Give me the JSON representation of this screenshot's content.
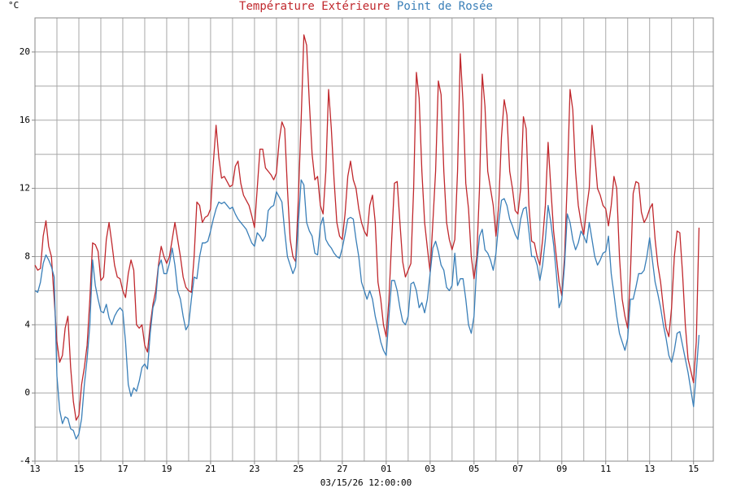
{
  "chart_data": {
    "type": "line",
    "y_unit": "°C",
    "x_label": "03/15/26 12:00:00",
    "x": [
      0,
      0.125,
      0.25,
      0.375,
      0.5,
      0.625,
      0.75,
      0.875,
      1,
      1.125,
      1.25,
      1.375,
      1.5,
      1.625,
      1.75,
      1.875,
      2,
      2.125,
      2.25,
      2.375,
      2.5,
      2.625,
      2.75,
      2.875,
      3,
      3.125,
      3.25,
      3.375,
      3.5,
      3.625,
      3.75,
      3.875,
      4,
      4.125,
      4.25,
      4.375,
      4.5,
      4.625,
      4.75,
      4.875,
      5,
      5.125,
      5.25,
      5.375,
      5.5,
      5.625,
      5.75,
      5.875,
      6,
      6.125,
      6.25,
      6.375,
      6.5,
      6.625,
      6.75,
      6.875,
      7,
      7.125,
      7.25,
      7.375,
      7.5,
      7.625,
      7.75,
      7.875,
      8,
      8.125,
      8.25,
      8.375,
      8.5,
      8.625,
      8.75,
      8.875,
      9,
      9.125,
      9.25,
      9.375,
      9.5,
      9.625,
      9.75,
      9.875,
      10,
      10.125,
      10.25,
      10.375,
      10.5,
      10.625,
      10.75,
      10.875,
      11,
      11.125,
      11.25,
      11.375,
      11.5,
      11.625,
      11.75,
      11.875,
      12,
      12.125,
      12.25,
      12.375,
      12.5,
      12.625,
      12.75,
      12.875,
      13,
      13.125,
      13.25,
      13.375,
      13.5,
      13.625,
      13.75,
      13.875,
      14,
      14.125,
      14.25,
      14.375,
      14.5,
      14.625,
      14.75,
      14.875,
      15,
      15.125,
      15.25,
      15.375,
      15.5,
      15.625,
      15.75,
      15.875,
      16,
      16.125,
      16.25,
      16.375,
      16.5,
      16.625,
      16.75,
      16.875,
      17,
      17.125,
      17.25,
      17.375,
      17.5,
      17.625,
      17.75,
      17.875,
      18,
      18.125,
      18.25,
      18.375,
      18.5,
      18.625,
      18.75,
      18.875,
      19,
      19.125,
      19.25,
      19.375,
      19.5,
      19.625,
      19.75,
      19.875,
      20,
      20.125,
      20.25,
      20.375,
      20.5,
      20.625,
      20.75,
      20.875,
      21,
      21.125,
      21.25,
      21.375,
      21.5,
      21.625,
      21.75,
      21.875,
      22,
      22.125,
      22.25,
      22.375,
      22.5,
      22.625,
      22.75,
      22.875,
      23,
      23.125,
      23.25,
      23.375,
      23.5,
      23.625,
      23.75,
      23.875,
      24,
      24.125,
      24.25,
      24.375,
      24.5,
      24.625,
      24.75,
      24.875,
      25,
      25.125,
      25.25,
      25.375,
      25.5,
      25.625,
      25.75,
      25.875,
      26,
      26.125,
      26.25,
      26.375,
      26.5,
      26.625,
      26.75,
      26.875,
      27,
      27.125,
      27.25,
      27.375,
      27.5,
      27.625,
      27.75,
      27.875,
      28,
      28.125,
      28.25,
      28.375,
      28.5,
      28.625,
      28.75,
      28.875,
      29,
      29.125,
      29.25,
      29.375,
      29.5,
      29.625,
      29.75,
      29.875,
      30,
      30.125,
      30.25
    ],
    "series": [
      {
        "name": "Température Extérieure",
        "color": "#c0282d",
        "values": [
          7.5,
          7.2,
          7.3,
          9.2,
          10.1,
          8.6,
          8.0,
          5.5,
          3.0,
          1.8,
          2.2,
          3.8,
          4.5,
          1.5,
          -0.5,
          -1.6,
          -1.3,
          0.5,
          1.5,
          2.8,
          5.5,
          8.8,
          8.7,
          8.3,
          6.6,
          6.8,
          9.0,
          10.0,
          8.8,
          7.5,
          6.8,
          6.7,
          6.0,
          5.6,
          7.0,
          7.8,
          7.2,
          4.0,
          3.8,
          4.0,
          2.8,
          2.4,
          4.0,
          5.2,
          6.0,
          7.5,
          8.6,
          8.0,
          7.6,
          8.0,
          9.0,
          10.0,
          9.0,
          8.0,
          6.8,
          6.2,
          6.0,
          5.9,
          8.0,
          11.2,
          11.0,
          10.0,
          10.3,
          10.4,
          10.8,
          13.5,
          15.7,
          13.8,
          12.6,
          12.7,
          12.4,
          12.1,
          12.2,
          13.3,
          13.6,
          12.3,
          11.6,
          11.3,
          11.0,
          10.4,
          9.7,
          12.0,
          14.3,
          14.3,
          13.2,
          13.0,
          12.8,
          12.5,
          12.9,
          14.8,
          15.9,
          15.5,
          12.0,
          9.0,
          8.0,
          7.7,
          11.5,
          16.0,
          21.0,
          20.4,
          17.0,
          14.0,
          12.5,
          12.7,
          11.0,
          10.5,
          13.0,
          17.8,
          15.5,
          12.5,
          10.0,
          9.2,
          9.0,
          10.5,
          12.7,
          13.6,
          12.5,
          12.0,
          10.8,
          10.0,
          9.5,
          9.2,
          11.0,
          11.6,
          10.0,
          6.5,
          5.5,
          4.0,
          3.3,
          5.5,
          9.0,
          12.3,
          12.4,
          10.0,
          7.7,
          6.8,
          7.2,
          7.6,
          12.0,
          18.8,
          17.3,
          13.0,
          10.0,
          8.5,
          7.1,
          10.0,
          13.0,
          18.3,
          17.5,
          13.0,
          10.0,
          9.0,
          8.4,
          9.0,
          13.0,
          19.9,
          17.0,
          12.3,
          10.8,
          8.0,
          6.7,
          8.0,
          12.0,
          18.7,
          16.8,
          13.0,
          12.0,
          11.0,
          9.2,
          11.0,
          15.0,
          17.2,
          16.3,
          13.0,
          12.0,
          10.7,
          10.5,
          12.0,
          16.2,
          15.5,
          11.0,
          8.9,
          8.8,
          8.0,
          7.5,
          9.0,
          11.0,
          14.7,
          12.0,
          9.5,
          8.0,
          6.5,
          5.7,
          8.0,
          12.5,
          17.8,
          16.6,
          13.0,
          11.0,
          10.0,
          9.3,
          10.8,
          12.0,
          15.7,
          14.0,
          12.0,
          11.6,
          11.0,
          10.8,
          9.8,
          11.0,
          12.7,
          12.0,
          8.0,
          5.5,
          4.5,
          3.8,
          7.0,
          11.7,
          12.4,
          12.3,
          10.6,
          10.0,
          10.3,
          10.8,
          11.1,
          9.0,
          7.5,
          6.5,
          5.0,
          3.8,
          3.3,
          5.0,
          8.0,
          9.5,
          9.4,
          7.0,
          4.0,
          2.0,
          1.3,
          0.6,
          3.0,
          9.7
        ]
      },
      {
        "name": "Point de Rosée",
        "color": "#3a7fb8",
        "values": [
          6.0,
          5.9,
          6.5,
          7.6,
          8.1,
          7.8,
          7.4,
          6.8,
          1.0,
          -1.0,
          -1.8,
          -1.4,
          -1.5,
          -2.1,
          -2.2,
          -2.7,
          -2.4,
          -1.5,
          0.5,
          2.0,
          4.0,
          7.8,
          6.3,
          5.5,
          4.8,
          4.7,
          5.2,
          4.4,
          4.0,
          4.5,
          4.8,
          5.0,
          4.8,
          3.0,
          0.5,
          -0.2,
          0.3,
          0.1,
          0.7,
          1.5,
          1.7,
          1.4,
          3.5,
          5.0,
          5.5,
          7.4,
          7.8,
          7.0,
          7.0,
          7.6,
          8.5,
          7.5,
          6.0,
          5.5,
          4.5,
          3.7,
          4.0,
          5.5,
          6.8,
          6.7,
          8.0,
          8.8,
          8.8,
          8.9,
          9.5,
          10.2,
          10.8,
          11.2,
          11.1,
          11.2,
          11.0,
          10.8,
          10.9,
          10.5,
          10.2,
          10.0,
          9.8,
          9.6,
          9.2,
          8.8,
          8.6,
          9.4,
          9.2,
          8.9,
          9.2,
          10.7,
          10.9,
          11.0,
          11.8,
          11.5,
          11.2,
          9.5,
          8.0,
          7.5,
          7.0,
          7.4,
          10.0,
          12.5,
          12.2,
          10.0,
          9.5,
          9.2,
          8.2,
          8.1,
          9.8,
          10.3,
          9.0,
          8.7,
          8.5,
          8.2,
          8.0,
          7.9,
          8.5,
          9.3,
          10.2,
          10.3,
          10.2,
          9.0,
          8.0,
          6.5,
          6.0,
          5.5,
          6.0,
          5.5,
          4.5,
          3.8,
          3.0,
          2.5,
          2.2,
          4.5,
          6.6,
          6.6,
          6.0,
          5.0,
          4.2,
          4.0,
          4.5,
          6.4,
          6.5,
          6.0,
          5.0,
          5.3,
          4.7,
          5.5,
          7.0,
          8.5,
          8.9,
          8.3,
          7.5,
          7.2,
          6.2,
          6.0,
          6.3,
          8.2,
          6.3,
          6.7,
          6.7,
          5.5,
          4.0,
          3.5,
          4.5,
          7.5,
          9.2,
          9.6,
          8.4,
          8.2,
          7.8,
          7.2,
          8.2,
          10.0,
          11.3,
          11.4,
          11.0,
          10.2,
          9.8,
          9.3,
          9.0,
          10.2,
          10.8,
          10.9,
          9.5,
          8.0,
          8.0,
          7.5,
          6.6,
          7.5,
          9.0,
          11.0,
          10.0,
          8.7,
          7.0,
          5.0,
          5.5,
          7.5,
          10.5,
          10.0,
          9.0,
          8.4,
          8.8,
          9.5,
          9.2,
          8.8,
          10.0,
          9.0,
          8.0,
          7.5,
          7.8,
          8.2,
          8.3,
          9.2,
          7.0,
          5.8,
          4.5,
          3.5,
          3.0,
          2.5,
          3.2,
          5.5,
          5.5,
          6.2,
          7.0,
          7.0,
          7.2,
          8.0,
          9.1,
          7.8,
          6.5,
          5.8,
          5.0,
          4.0,
          3.2,
          2.2,
          1.8,
          2.5,
          3.5,
          3.6,
          2.8,
          2.0,
          1.2,
          0.2,
          -0.8,
          1.2,
          3.4
        ]
      }
    ],
    "xlim": [
      0,
      30.9
    ],
    "xticks": [
      {
        "value": 0,
        "label": "13"
      },
      {
        "value": 2,
        "label": "15"
      },
      {
        "value": 4,
        "label": "17"
      },
      {
        "value": 6,
        "label": "19"
      },
      {
        "value": 8,
        "label": "21"
      },
      {
        "value": 10,
        "label": "23"
      },
      {
        "value": 12,
        "label": "25"
      },
      {
        "value": 14,
        "label": "27"
      },
      {
        "value": 16,
        "label": "01"
      },
      {
        "value": 18,
        "label": "03"
      },
      {
        "value": 20,
        "label": "05"
      },
      {
        "value": 22,
        "label": "07"
      },
      {
        "value": 24,
        "label": "09"
      },
      {
        "value": 26,
        "label": "11"
      },
      {
        "value": 28,
        "label": "13"
      },
      {
        "value": 30,
        "label": "15"
      }
    ],
    "x_minor_ticks": [
      1,
      3,
      5,
      7,
      9,
      11,
      13,
      15,
      17,
      19,
      21,
      23,
      25,
      27,
      29
    ],
    "ylim": [
      -4,
      22
    ],
    "yticks": [
      -4,
      0,
      4,
      8,
      12,
      16,
      20
    ],
    "y_minor_ticks": [
      -2,
      2,
      6,
      10,
      14,
      18
    ],
    "grid": true
  }
}
